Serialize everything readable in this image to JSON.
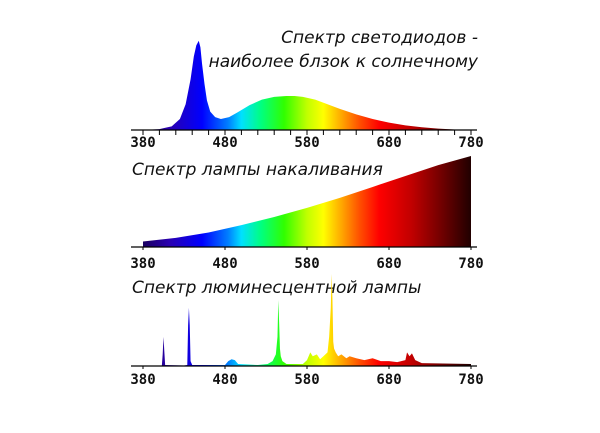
{
  "chart_data": [
    {
      "type": "area",
      "title_lines": [
        "Спектр светодиодов -",
        "наиболее блзок к солнечному"
      ],
      "xlabel": "",
      "ylabel": "",
      "xlim": [
        380,
        780
      ],
      "ylim": [
        0,
        1
      ],
      "ticks": [
        "380",
        "480",
        "580",
        "680",
        "780"
      ],
      "series": [
        {
          "x": [
            380,
            400,
            415,
            425,
            432,
            438,
            442,
            445,
            448,
            450,
            452,
            455,
            458,
            462,
            468,
            475,
            485,
            495,
            510,
            525,
            540,
            555,
            565,
            575,
            590,
            605,
            620,
            640,
            660,
            680,
            700,
            720,
            740,
            760,
            775,
            780
          ],
          "y": [
            0,
            0.01,
            0.04,
            0.12,
            0.28,
            0.55,
            0.8,
            0.92,
            0.97,
            0.9,
            0.72,
            0.5,
            0.32,
            0.2,
            0.14,
            0.12,
            0.14,
            0.19,
            0.27,
            0.33,
            0.36,
            0.37,
            0.37,
            0.36,
            0.33,
            0.28,
            0.23,
            0.17,
            0.12,
            0.08,
            0.05,
            0.03,
            0.015,
            0.006,
            0.002,
            0
          ]
        }
      ]
    },
    {
      "type": "area",
      "title": "Спектр лампы накаливания",
      "xlabel": "",
      "ylabel": "",
      "xlim": [
        380,
        780
      ],
      "ylim": [
        0,
        1
      ],
      "ticks": [
        "380",
        "480",
        "580",
        "680",
        "780"
      ],
      "series": [
        {
          "x": [
            380,
            420,
            460,
            500,
            540,
            580,
            620,
            660,
            700,
            740,
            780
          ],
          "y": [
            0.06,
            0.1,
            0.16,
            0.24,
            0.33,
            0.43,
            0.54,
            0.66,
            0.78,
            0.9,
            1.0
          ]
        }
      ]
    },
    {
      "type": "area",
      "title": "Спектр люминесцентной лампы",
      "xlabel": "",
      "ylabel": "",
      "xlim": [
        380,
        780
      ],
      "ylim": [
        0,
        1
      ],
      "ticks": [
        "380",
        "480",
        "580",
        "680",
        "780"
      ],
      "series": [
        {
          "x": [
            380,
            403,
            404,
            405,
            406,
            407,
            430,
            434,
            435,
            436,
            437,
            438,
            440,
            480,
            484,
            488,
            492,
            496,
            520,
            532,
            538,
            542,
            544,
            545,
            546,
            547,
            548,
            550,
            555,
            575,
            580,
            584,
            587,
            592,
            596,
            600,
            605,
            607,
            609,
            610,
            611,
            612,
            613,
            615,
            618,
            622,
            628,
            632,
            640,
            650,
            660,
            670,
            680,
            690,
            700,
            702,
            705,
            708,
            712,
            720,
            780
          ],
          "y": [
            0,
            0.005,
            0.12,
            0.3,
            0.15,
            0.01,
            0.005,
            0.01,
            0.42,
            0.6,
            0.42,
            0.05,
            0.01,
            0.01,
            0.05,
            0.07,
            0.06,
            0.02,
            0.01,
            0.02,
            0.05,
            0.12,
            0.3,
            0.68,
            0.45,
            0.18,
            0.1,
            0.05,
            0.02,
            0.02,
            0.06,
            0.14,
            0.1,
            0.12,
            0.07,
            0.1,
            0.14,
            0.3,
            0.6,
            0.95,
            0.7,
            0.25,
            0.18,
            0.14,
            0.1,
            0.12,
            0.08,
            0.1,
            0.08,
            0.06,
            0.08,
            0.05,
            0.05,
            0.04,
            0.06,
            0.14,
            0.1,
            0.13,
            0.06,
            0.03,
            0.02
          ]
        }
      ]
    }
  ]
}
